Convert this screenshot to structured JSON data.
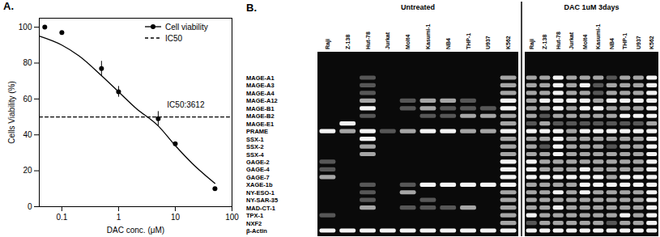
{
  "chart_data": [
    {
      "type": "line",
      "title": "A.",
      "x_label": "DAC conc. (μM)",
      "y_label": "Cells Viability (%)",
      "log": "x",
      "xlim": [
        0.04,
        100
      ],
      "xticks": [
        0.1,
        1,
        10,
        100
      ],
      "ylim": [
        0,
        105
      ],
      "yticks": [
        0,
        20,
        40,
        60,
        80,
        100
      ],
      "grid": false,
      "legend": "upper right",
      "annotations": [
        "IC50:3612"
      ],
      "series": [
        {
          "name": "Cell viability",
          "type": "scatter",
          "color": "#000000",
          "marker": "circle",
          "x": [
            0.05,
            0.1,
            0.5,
            1,
            5,
            10,
            50
          ],
          "values": [
            100,
            97,
            77,
            64,
            49,
            35,
            10
          ],
          "error": [
            0,
            0,
            4,
            3,
            4,
            0,
            0
          ],
          "fit_x": [
            0.04,
            0.1,
            0.2,
            0.5,
            1,
            2,
            5,
            10,
            20,
            50
          ],
          "fit_values": [
            95,
            90,
            84,
            73,
            64,
            55,
            45,
            34,
            24,
            13
          ]
        },
        {
          "name": "IC50",
          "type": "line",
          "color": "#000000",
          "line_style": "dashed",
          "x": [
            0.04,
            100
          ],
          "values": [
            50,
            50
          ]
        }
      ]
    },
    {
      "type": "gel",
      "title": "B.",
      "groups": [
        "Untreated",
        "DAC 1uM 3days"
      ],
      "lanes": [
        "Raji",
        "Z-138",
        "Hut-78",
        "Jurkat",
        "Molt4",
        "Kasumi-1",
        "NB4",
        "THP-1",
        "U937",
        "K562"
      ],
      "genes": [
        "MAGE-A1",
        "MAGE-A3",
        "MAGE-A4",
        "MAGE-A12",
        "MAGE-B1",
        "MAGE-B2",
        "MAGE-E1",
        "PRAME",
        "SSX-1",
        "SSX-2",
        "SSX-4",
        "GAGE-2",
        "GAGE-4",
        "GAGE-7",
        "XAGE-1b",
        "NY-ESO-1",
        "NY-SAR-35",
        "MAD-CT-1",
        "TPX-1",
        "NXF2",
        "β-Actin"
      ],
      "intensity_range": [
        0,
        3
      ],
      "intensity": [
        [
          [
            0,
            0,
            1,
            0,
            0,
            0,
            0,
            0,
            0,
            2
          ],
          [
            0,
            0,
            1,
            0,
            0,
            0,
            0,
            0,
            0,
            2
          ],
          [
            0,
            0,
            1,
            0,
            0,
            0,
            0,
            0,
            0,
            2
          ],
          [
            0,
            0,
            2,
            0,
            1,
            2,
            2,
            1,
            0,
            3
          ],
          [
            0,
            0,
            3,
            0,
            1,
            2,
            1,
            1,
            1,
            3
          ],
          [
            0,
            0,
            1,
            0,
            0,
            1,
            1,
            2,
            2,
            2
          ],
          [
            0,
            3,
            0,
            0,
            0,
            0,
            0,
            0,
            0,
            2
          ],
          [
            3,
            2,
            3,
            1,
            2,
            3,
            3,
            2,
            2,
            3
          ],
          [
            0,
            0,
            3,
            0,
            0,
            0,
            0,
            0,
            0,
            2
          ],
          [
            0,
            0,
            2,
            0,
            0,
            0,
            0,
            0,
            0,
            2
          ],
          [
            0,
            0,
            2,
            0,
            0,
            0,
            0,
            0,
            0,
            2
          ],
          [
            1,
            0,
            0,
            0,
            0,
            0,
            0,
            0,
            0,
            3
          ],
          [
            1,
            0,
            0,
            0,
            0,
            0,
            0,
            0,
            0,
            3
          ],
          [
            2,
            0,
            0,
            0,
            0,
            0,
            0,
            0,
            0,
            3
          ],
          [
            0,
            0,
            1,
            0,
            1,
            3,
            3,
            3,
            3,
            3
          ],
          [
            0,
            0,
            1,
            0,
            2,
            0,
            0,
            0,
            0,
            2
          ],
          [
            0,
            0,
            1,
            0,
            0,
            1,
            0,
            0,
            0,
            2
          ],
          [
            0,
            0,
            2,
            0,
            1,
            1,
            1,
            2,
            0,
            2
          ],
          [
            1,
            0,
            0,
            0,
            0,
            0,
            0,
            0,
            0,
            2
          ],
          [
            0,
            0,
            0,
            0,
            0,
            0,
            0,
            0,
            0,
            2
          ],
          [
            3,
            3,
            3,
            3,
            3,
            3,
            3,
            3,
            3,
            3
          ]
        ],
        [
          [
            2,
            2,
            3,
            2,
            2,
            2,
            1,
            2,
            2,
            3
          ],
          [
            2,
            2,
            3,
            2,
            3,
            1,
            2,
            2,
            2,
            3
          ],
          [
            2,
            2,
            3,
            2,
            2,
            1,
            2,
            2,
            2,
            3
          ],
          [
            2,
            3,
            3,
            3,
            3,
            2,
            3,
            3,
            3,
            3
          ],
          [
            2,
            2,
            3,
            2,
            3,
            3,
            2,
            2,
            2,
            3
          ],
          [
            2,
            1,
            2,
            2,
            2,
            2,
            2,
            3,
            3,
            3
          ],
          [
            1,
            2,
            1,
            1,
            1,
            1,
            1,
            1,
            1,
            2
          ],
          [
            3,
            3,
            3,
            2,
            3,
            3,
            3,
            3,
            3,
            3
          ],
          [
            2,
            2,
            3,
            2,
            2,
            2,
            2,
            2,
            2,
            3
          ],
          [
            2,
            1,
            3,
            2,
            2,
            2,
            1,
            2,
            2,
            3
          ],
          [
            2,
            2,
            3,
            2,
            2,
            2,
            2,
            2,
            2,
            3
          ],
          [
            3,
            2,
            2,
            2,
            2,
            2,
            2,
            2,
            2,
            3
          ],
          [
            3,
            2,
            2,
            2,
            3,
            2,
            2,
            2,
            2,
            3
          ],
          [
            3,
            3,
            3,
            3,
            3,
            3,
            2,
            3,
            3,
            3
          ],
          [
            2,
            2,
            2,
            2,
            3,
            3,
            3,
            3,
            3,
            3
          ],
          [
            2,
            2,
            3,
            2,
            3,
            2,
            2,
            2,
            2,
            3
          ],
          [
            2,
            2,
            2,
            2,
            2,
            2,
            2,
            2,
            2,
            3
          ],
          [
            2,
            2,
            3,
            2,
            2,
            2,
            2,
            2,
            2,
            3
          ],
          [
            3,
            2,
            2,
            2,
            2,
            2,
            2,
            3,
            2,
            3
          ],
          [
            1,
            2,
            2,
            2,
            2,
            2,
            1,
            2,
            2,
            3
          ],
          [
            3,
            3,
            3,
            3,
            3,
            3,
            3,
            3,
            3,
            3
          ]
        ]
      ]
    }
  ]
}
